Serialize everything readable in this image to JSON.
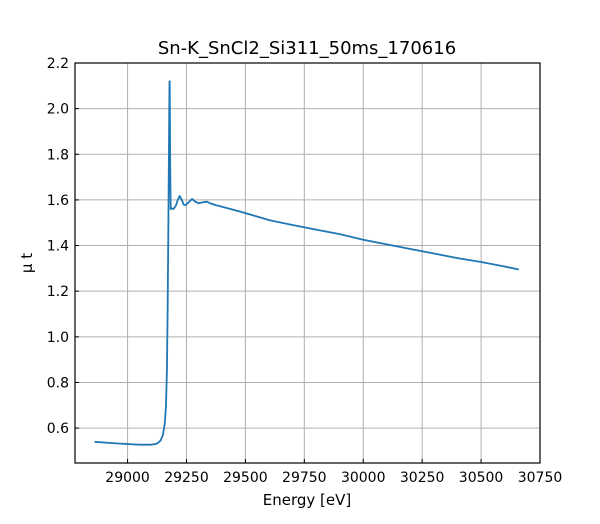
{
  "chart_data": {
    "type": "line",
    "title": "Sn-K_SnCl2_Si311_50ms_170616",
    "xlabel": "Energy [eV]",
    "ylabel": "μ t",
    "xlim": [
      28777,
      30750
    ],
    "ylim": [
      0.447,
      2.2
    ],
    "grid": true,
    "xticks": [
      29000,
      29250,
      29500,
      29750,
      30000,
      30250,
      30500,
      30750
    ],
    "yticks": [
      0.6,
      0.8,
      1.0,
      1.2,
      1.4,
      1.6,
      1.8,
      2.0,
      2.2
    ],
    "xtick_labels": [
      "29000",
      "29250",
      "29500",
      "29750",
      "30000",
      "30250",
      "30500",
      "30750"
    ],
    "ytick_labels": [
      "0.6",
      "0.8",
      "1.0",
      "1.2",
      "1.4",
      "1.6",
      "1.8",
      "2.0",
      "2.2"
    ],
    "series": [
      {
        "name": "mu t",
        "color": "#1f77b4",
        "x": [
          28860,
          28950,
          29050,
          29100,
          29125,
          29140,
          29150,
          29158,
          29163,
          29167,
          29170,
          29173,
          29176,
          29178,
          29179,
          29181,
          29183,
          29186,
          29195,
          29205,
          29213,
          29221,
          29230,
          29238,
          29246,
          29260,
          29274,
          29288,
          29302,
          29320,
          29336,
          29356,
          29376,
          29419,
          29480,
          29540,
          29603,
          29700,
          29800,
          29900,
          30000,
          30100,
          30200,
          30300,
          30400,
          30500,
          30600,
          30660
        ],
        "y": [
          0.54,
          0.533,
          0.527,
          0.527,
          0.532,
          0.545,
          0.57,
          0.62,
          0.7,
          0.85,
          1.1,
          1.45,
          1.85,
          2.12,
          2.12,
          1.75,
          1.56,
          1.563,
          1.56,
          1.575,
          1.6,
          1.617,
          1.6,
          1.58,
          1.577,
          1.59,
          1.604,
          1.592,
          1.585,
          1.59,
          1.592,
          1.583,
          1.577,
          1.565,
          1.548,
          1.53,
          1.511,
          1.49,
          1.47,
          1.45,
          1.425,
          1.405,
          1.385,
          1.365,
          1.345,
          1.328,
          1.308,
          1.295
        ]
      }
    ]
  }
}
